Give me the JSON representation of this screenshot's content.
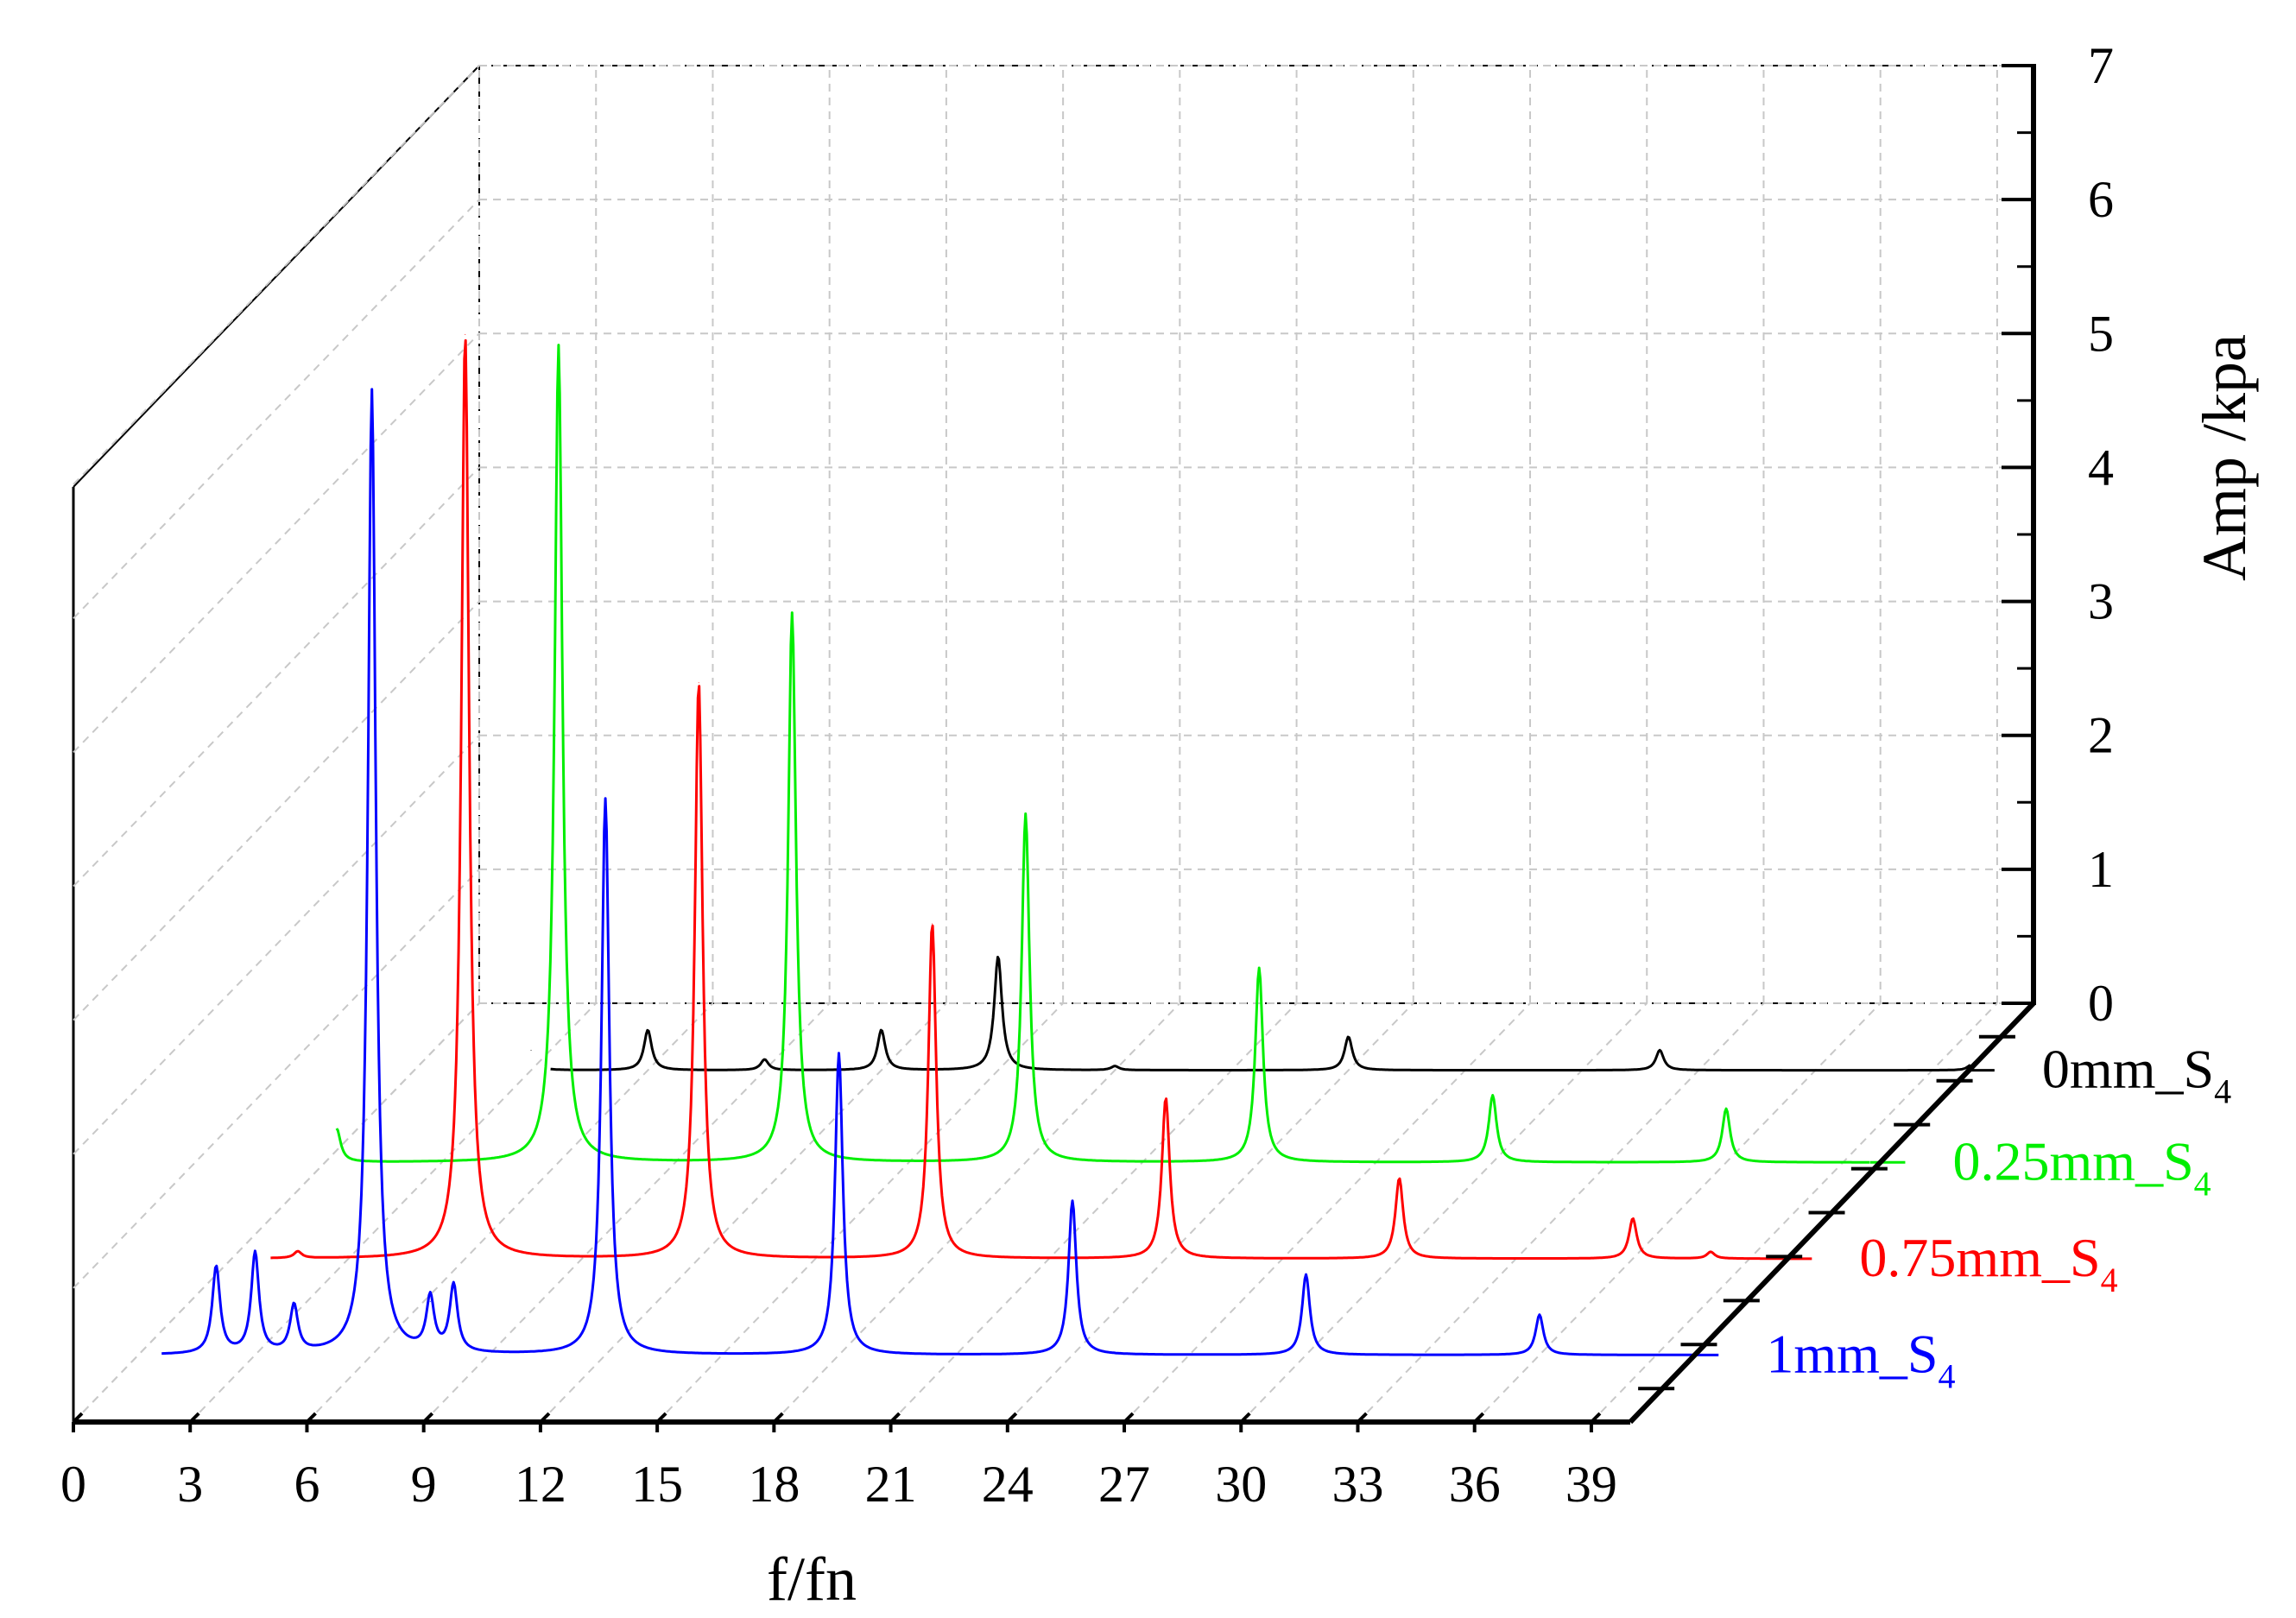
{
  "chart_data": {
    "type": "line",
    "projection": "3d-waterfall",
    "title": "",
    "xlabel": "f/fn",
    "zlabel": "Amp /kpa",
    "xlim": [
      0,
      40
    ],
    "zlim": [
      0,
      7
    ],
    "x_ticks": [
      0,
      3,
      6,
      9,
      12,
      15,
      18,
      21,
      24,
      27,
      30,
      33,
      36,
      39
    ],
    "z_ticks": [
      0,
      1,
      2,
      3,
      4,
      5,
      6,
      7
    ],
    "grid": true,
    "series": [
      {
        "name": "0mm_S",
        "name_sub": "4",
        "color": "#000000",
        "peaks": [
          {
            "x": 3,
            "y": 0.15
          },
          {
            "x": 6,
            "y": 0.3
          },
          {
            "x": 9,
            "y": 0.08
          },
          {
            "x": 12,
            "y": 0.3
          },
          {
            "x": 15,
            "y": 0.85
          },
          {
            "x": 18,
            "y": 0.03
          },
          {
            "x": 24,
            "y": 0.25
          },
          {
            "x": 32,
            "y": 0.15
          },
          {
            "x": 40,
            "y": 0.04
          }
        ]
      },
      {
        "name": "0.25mm_S",
        "name_sub": "4",
        "color": "#00ee00",
        "peaks": [
          {
            "x": 0.3,
            "y": 0.25
          },
          {
            "x": 6,
            "y": 6.1
          },
          {
            "x": 12,
            "y": 4.1
          },
          {
            "x": 18,
            "y": 2.6
          },
          {
            "x": 24,
            "y": 1.45
          },
          {
            "x": 30,
            "y": 0.5
          },
          {
            "x": 36,
            "y": 0.4
          }
        ]
      },
      {
        "name": "0.75mm_S",
        "name_sub": "4",
        "color": "#ff0000",
        "peaks": [
          {
            "x": 1.7,
            "y": 0.05
          },
          {
            "x": 6,
            "y": 6.9
          },
          {
            "x": 12,
            "y": 4.3
          },
          {
            "x": 18,
            "y": 2.5
          },
          {
            "x": 24,
            "y": 1.2
          },
          {
            "x": 30,
            "y": 0.6
          },
          {
            "x": 36,
            "y": 0.3
          },
          {
            "x": 38,
            "y": 0.05
          }
        ]
      },
      {
        "name": "1mm_S",
        "name_sub": "4",
        "color": "#0000ff",
        "peaks": [
          {
            "x": 2,
            "y": 0.65
          },
          {
            "x": 3,
            "y": 0.75
          },
          {
            "x": 4,
            "y": 0.35
          },
          {
            "x": 6,
            "y": 7.2
          },
          {
            "x": 7.5,
            "y": 0.4
          },
          {
            "x": 8.1,
            "y": 0.5
          },
          {
            "x": 12,
            "y": 4.15
          },
          {
            "x": 18,
            "y": 2.25
          },
          {
            "x": 24,
            "y": 1.15
          },
          {
            "x": 30,
            "y": 0.6
          },
          {
            "x": 36,
            "y": 0.3
          }
        ]
      }
    ]
  }
}
